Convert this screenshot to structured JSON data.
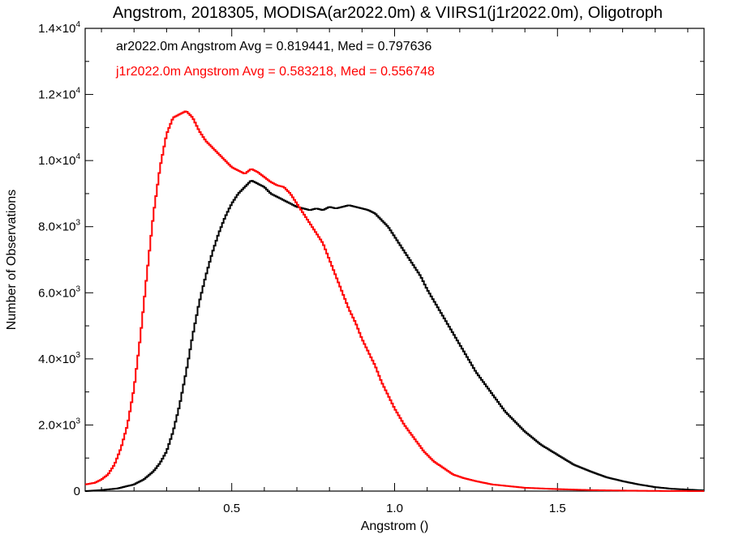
{
  "chart_data": {
    "type": "line",
    "title": "Angstrom, 2018305, MODISA(ar2022.0m) & VIIRS1(j1r2022.0m), Oligotroph",
    "xlabel": "Angstrom ()",
    "ylabel": "Number of Observations",
    "xlim": [
      0.05,
      1.95
    ],
    "ylim": [
      0,
      14000
    ],
    "x_ticks": [
      {
        "value": 0.5,
        "label": "0.5"
      },
      {
        "value": 1.0,
        "label": "1.0"
      },
      {
        "value": 1.5,
        "label": "1.5"
      }
    ],
    "y_ticks": [
      {
        "value": 0,
        "mantissa": "0",
        "exp": ""
      },
      {
        "value": 2000,
        "mantissa": "2.0×10",
        "exp": "3"
      },
      {
        "value": 4000,
        "mantissa": "4.0×10",
        "exp": "3"
      },
      {
        "value": 6000,
        "mantissa": "6.0×10",
        "exp": "3"
      },
      {
        "value": 8000,
        "mantissa": "8.0×10",
        "exp": "3"
      },
      {
        "value": 10000,
        "mantissa": "1.0×10",
        "exp": "4"
      },
      {
        "value": 12000,
        "mantissa": "1.2×10",
        "exp": "4"
      },
      {
        "value": 14000,
        "mantissa": "1.4×10",
        "exp": "4"
      }
    ],
    "grid": false,
    "legend_position": "top-left",
    "series": [
      {
        "name": "ar2022.0m",
        "legend": "ar2022.0m Angstrom Avg = 0.819441, Med = 0.797636",
        "color": "#000000",
        "x": [
          0.05,
          0.1,
          0.15,
          0.2,
          0.23,
          0.26,
          0.28,
          0.3,
          0.32,
          0.34,
          0.36,
          0.38,
          0.4,
          0.42,
          0.44,
          0.46,
          0.48,
          0.5,
          0.52,
          0.54,
          0.56,
          0.58,
          0.6,
          0.62,
          0.64,
          0.66,
          0.68,
          0.7,
          0.72,
          0.74,
          0.76,
          0.78,
          0.8,
          0.82,
          0.84,
          0.86,
          0.88,
          0.9,
          0.92,
          0.94,
          0.96,
          0.98,
          1.0,
          1.02,
          1.04,
          1.06,
          1.08,
          1.1,
          1.13,
          1.16,
          1.19,
          1.22,
          1.25,
          1.28,
          1.31,
          1.34,
          1.37,
          1.4,
          1.45,
          1.5,
          1.55,
          1.6,
          1.65,
          1.7,
          1.75,
          1.8,
          1.85,
          1.95
        ],
        "y": [
          0,
          30,
          80,
          200,
          350,
          600,
          850,
          1200,
          1800,
          2600,
          3600,
          4700,
          5700,
          6500,
          7200,
          7800,
          8300,
          8700,
          9000,
          9200,
          9400,
          9300,
          9200,
          9000,
          8900,
          8800,
          8700,
          8600,
          8550,
          8500,
          8550,
          8500,
          8600,
          8550,
          8600,
          8650,
          8600,
          8550,
          8500,
          8400,
          8200,
          8000,
          7700,
          7400,
          7100,
          6800,
          6500,
          6100,
          5600,
          5100,
          4600,
          4100,
          3600,
          3200,
          2800,
          2400,
          2100,
          1800,
          1400,
          1100,
          800,
          600,
          420,
          300,
          200,
          120,
          70,
          20
        ]
      },
      {
        "name": "j1r2022.0m",
        "legend": "j1r2022.0m Angstrom Avg = 0.583218, Med = 0.556748",
        "color": "#ff0000",
        "x": [
          0.05,
          0.08,
          0.1,
          0.12,
          0.14,
          0.16,
          0.18,
          0.2,
          0.22,
          0.24,
          0.26,
          0.28,
          0.3,
          0.32,
          0.34,
          0.36,
          0.38,
          0.4,
          0.42,
          0.44,
          0.46,
          0.48,
          0.5,
          0.52,
          0.54,
          0.56,
          0.58,
          0.6,
          0.62,
          0.64,
          0.66,
          0.68,
          0.7,
          0.72,
          0.74,
          0.76,
          0.78,
          0.8,
          0.82,
          0.84,
          0.86,
          0.88,
          0.9,
          0.92,
          0.94,
          0.96,
          0.98,
          1.0,
          1.03,
          1.06,
          1.09,
          1.12,
          1.15,
          1.18,
          1.21,
          1.25,
          1.3,
          1.35,
          1.4,
          1.5,
          1.6,
          1.7,
          1.8,
          1.95
        ],
        "y": [
          200,
          250,
          350,
          500,
          800,
          1300,
          2000,
          3100,
          4700,
          6600,
          8400,
          9800,
          10800,
          11300,
          11400,
          11500,
          11300,
          10900,
          10600,
          10400,
          10200,
          10000,
          9800,
          9700,
          9600,
          9750,
          9650,
          9500,
          9350,
          9250,
          9200,
          9000,
          8700,
          8400,
          8100,
          7800,
          7500,
          7000,
          6500,
          6000,
          5500,
          5100,
          4600,
          4200,
          3800,
          3300,
          2900,
          2500,
          2000,
          1600,
          1200,
          900,
          700,
          500,
          400,
          300,
          200,
          150,
          100,
          60,
          30,
          15,
          5,
          0
        ]
      }
    ]
  }
}
